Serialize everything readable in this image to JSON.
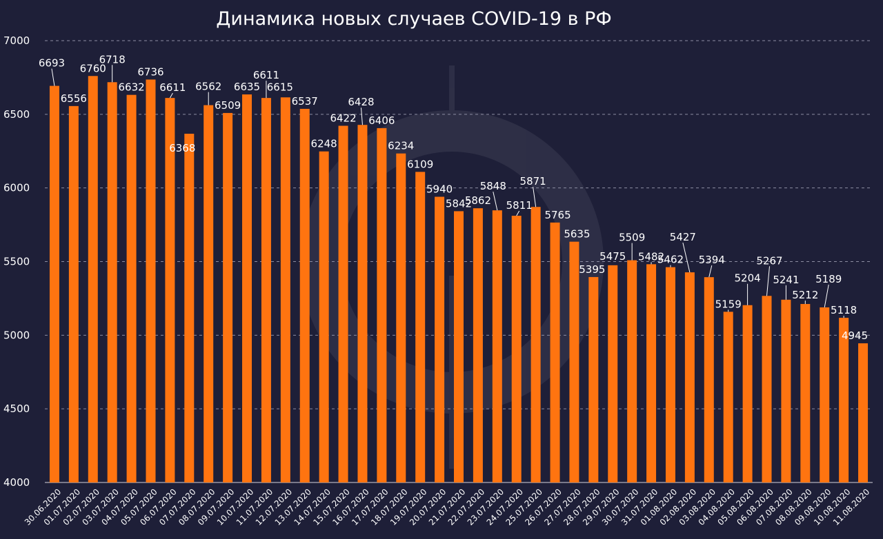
{
  "chart_data": {
    "type": "bar",
    "title": "Динамика новых случаев COVID-19 в РФ",
    "xlabel": "",
    "ylabel": "",
    "ylim": [
      4000,
      7000
    ],
    "yticks": [
      4000,
      4500,
      5000,
      5500,
      6000,
      6500,
      7000
    ],
    "grid": true,
    "legend": "none",
    "colors": {
      "background": "#1e1f38",
      "bar": "#ff7410",
      "grid": "#8d8ea3",
      "text": "#ffffff"
    },
    "categories": [
      "30.06.2020",
      "01.07.2020",
      "02.07.2020",
      "03.07.2020",
      "04.07.2020",
      "05.07.2020",
      "06.07.2020",
      "07.07.2020",
      "08.07.2020",
      "09.07.2020",
      "10.07.2020",
      "11.07.2020",
      "12.07.2020",
      "13.07.2020",
      "14.07.2020",
      "15.07.2020",
      "16.07.2020",
      "17.07.2020",
      "18.07.2020",
      "19.07.2020",
      "20.07.2020",
      "21.07.2020",
      "22.07.2020",
      "23.07.2020",
      "24.07.2020",
      "25.07.2020",
      "26.07.2020",
      "27.07.2020",
      "28.07.2020",
      "29.07.2020",
      "30.07.2020",
      "31.07.2020",
      "01.08.2020",
      "02.08.2020",
      "03.08.2020",
      "04.08.2020",
      "05.08.2020",
      "06.08.2020",
      "07.08.2020",
      "08.08.2020",
      "09.08.2020",
      "10.08.2020",
      "11.08.2020"
    ],
    "values": [
      6693,
      6556,
      6760,
      6718,
      6632,
      6736,
      6611,
      6368,
      6562,
      6509,
      6635,
      6611,
      6615,
      6537,
      6248,
      6422,
      6428,
      6406,
      6234,
      6109,
      5940,
      5842,
      5862,
      5848,
      5811,
      5871,
      5765,
      5635,
      5395,
      5475,
      5509,
      5482,
      5462,
      5427,
      5394,
      5159,
      5204,
      5267,
      5241,
      5212,
      5189,
      5118,
      4945
    ]
  }
}
